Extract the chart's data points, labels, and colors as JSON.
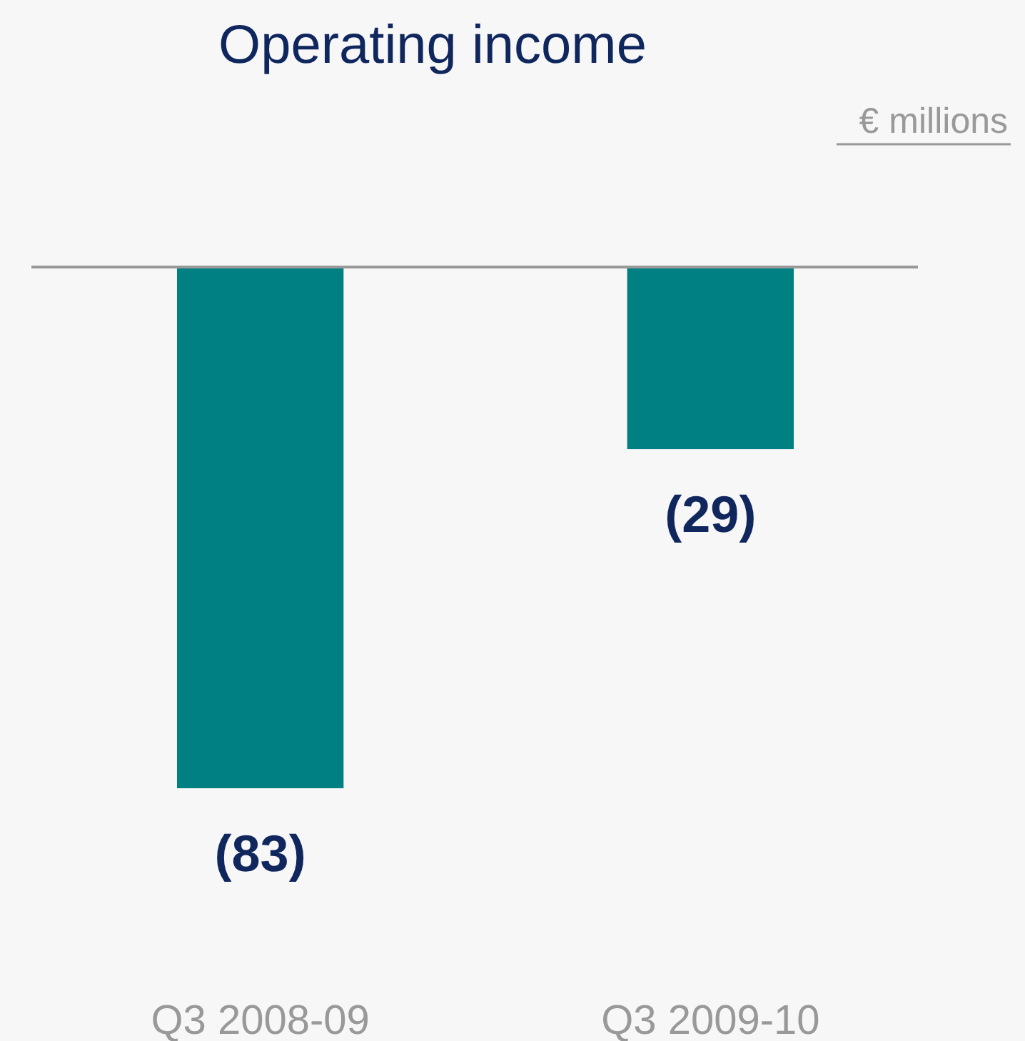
{
  "chart_data": {
    "type": "bar",
    "title": "Operating income",
    "ylabel": "€ millions",
    "categories": [
      "Q3 2008-09",
      "Q3 2009-10"
    ],
    "values": [
      -83,
      -29
    ],
    "value_labels": [
      "(83)",
      "(29)"
    ],
    "color": "#008080",
    "tick_labels": "x"
  }
}
